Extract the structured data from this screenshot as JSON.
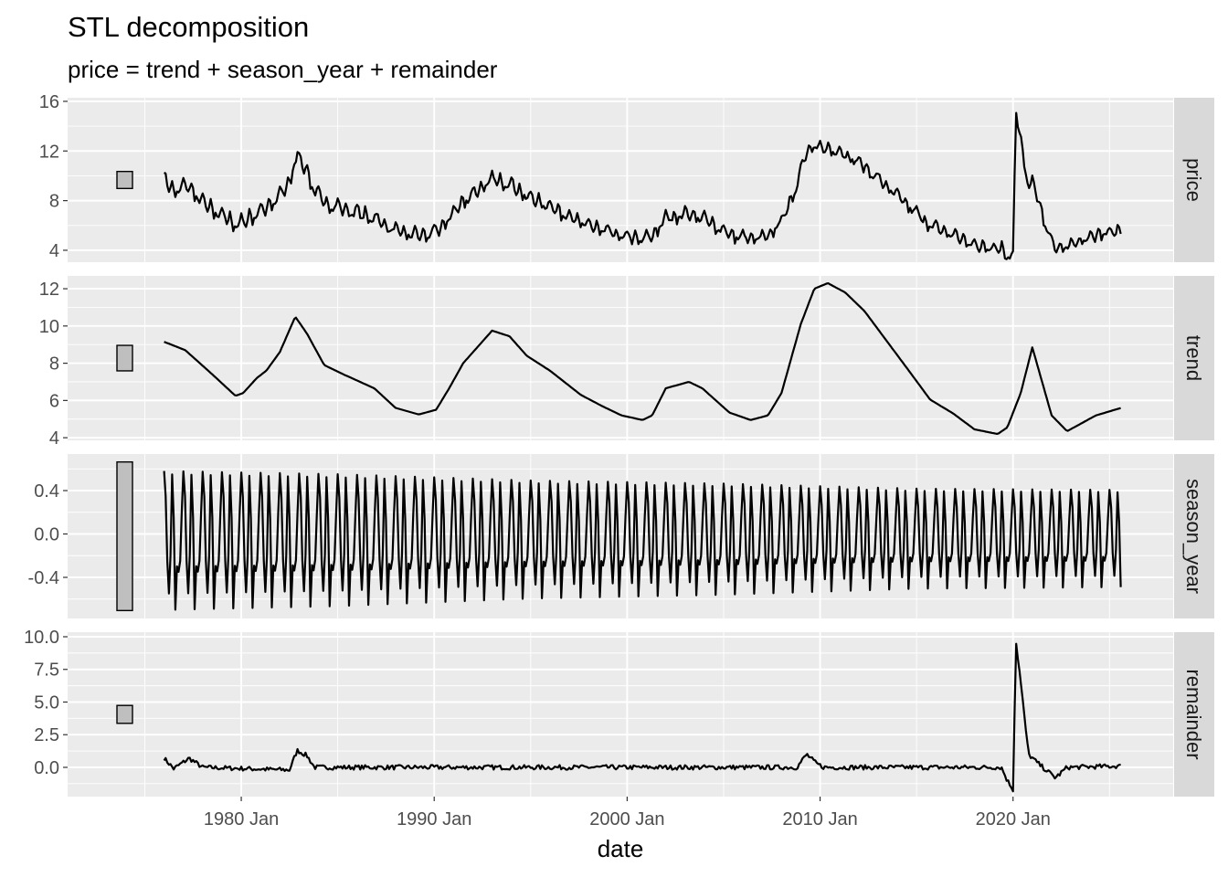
{
  "chart_data": {
    "type": "line",
    "title": "STL decomposition",
    "subtitle": "price = trend + season_year + remainder",
    "xlabel": "date",
    "x_ticks": [
      "1980 Jan",
      "1990 Jan",
      "2000 Jan",
      "2010 Jan",
      "2020 Jan"
    ],
    "x_tick_years": [
      1980,
      1990,
      2000,
      2010,
      2020
    ],
    "x_range": [
      1971.0,
      2028.3
    ],
    "data_start": 1976.0,
    "data_end": 2025.6,
    "grid": true,
    "colors": {
      "panel_bg": "#ebebeb",
      "strip_bg": "#d9d9d9",
      "line": "#000000",
      "scale_bar": "#bfbfbf"
    },
    "panels": [
      {
        "name": "price",
        "ylim": [
          3.04,
          16.29
        ],
        "y_ticks": [
          4,
          8,
          12,
          16
        ],
        "y_tick_labels": [
          "4",
          "8",
          "12",
          "16"
        ]
      },
      {
        "name": "trend",
        "ylim": [
          3.86,
          12.69
        ],
        "y_ticks": [
          4,
          6,
          8,
          10,
          12
        ],
        "y_tick_labels": [
          "4",
          "6",
          "8",
          "10",
          "12"
        ]
      },
      {
        "name": "season_year",
        "ylim": [
          -0.779,
          0.737
        ],
        "y_ticks": [
          -0.4,
          0,
          0.4
        ],
        "y_tick_labels": [
          "-0.4",
          "0.0",
          "0.4"
        ]
      },
      {
        "name": "remainder",
        "ylim": [
          -2.24,
          10.35
        ],
        "y_ticks": [
          0,
          2.5,
          5,
          7.5,
          10
        ],
        "y_tick_labels": [
          "0.0",
          "2.5",
          "5.0",
          "7.5",
          "10.0"
        ]
      }
    ],
    "scale_bar_range": 1.37,
    "trend": [
      [
        1976.0,
        9.15
      ],
      [
        1977.1,
        8.7
      ],
      [
        1978.5,
        7.4
      ],
      [
        1979.7,
        6.25
      ],
      [
        1980.1,
        6.4
      ],
      [
        1980.8,
        7.2
      ],
      [
        1981.3,
        7.6
      ],
      [
        1982.0,
        8.6
      ],
      [
        1982.8,
        10.5
      ],
      [
        1983.4,
        9.6
      ],
      [
        1984.3,
        7.9
      ],
      [
        1985.3,
        7.4
      ],
      [
        1986.9,
        6.65
      ],
      [
        1988.0,
        5.6
      ],
      [
        1989.2,
        5.25
      ],
      [
        1990.1,
        5.5
      ],
      [
        1990.8,
        6.7
      ],
      [
        1991.5,
        8.0
      ],
      [
        1993.0,
        9.75
      ],
      [
        1993.9,
        9.45
      ],
      [
        1994.8,
        8.4
      ],
      [
        1996.0,
        7.6
      ],
      [
        1997.6,
        6.3
      ],
      [
        1998.7,
        5.7
      ],
      [
        1999.7,
        5.2
      ],
      [
        2000.8,
        4.95
      ],
      [
        2001.3,
        5.2
      ],
      [
        2002.0,
        6.65
      ],
      [
        2003.2,
        7.0
      ],
      [
        2003.9,
        6.65
      ],
      [
        2005.3,
        5.35
      ],
      [
        2006.4,
        4.95
      ],
      [
        2007.3,
        5.2
      ],
      [
        2008.0,
        6.4
      ],
      [
        2009.0,
        10.1
      ],
      [
        2009.7,
        12.0
      ],
      [
        2010.4,
        12.3
      ],
      [
        2011.3,
        11.8
      ],
      [
        2012.3,
        10.8
      ],
      [
        2014.6,
        7.6
      ],
      [
        2015.7,
        6.05
      ],
      [
        2016.9,
        5.3
      ],
      [
        2018.0,
        4.45
      ],
      [
        2019.2,
        4.2
      ],
      [
        2019.7,
        4.55
      ],
      [
        2020.4,
        6.4
      ],
      [
        2021.0,
        8.85
      ],
      [
        2022.0,
        5.2
      ],
      [
        2022.8,
        4.35
      ],
      [
        2024.3,
        5.2
      ],
      [
        2025.6,
        5.6
      ]
    ],
    "season_monthly_pattern": [
      0.58,
      0.35,
      -0.25,
      -0.55,
      -0.2,
      0.55,
      0.15,
      -0.7,
      -0.3,
      -0.35,
      -0.25,
      0.2
    ],
    "season_amplitude": [
      [
        1976,
        1.0
      ],
      [
        1985,
        0.95
      ],
      [
        1995,
        0.85
      ],
      [
        2005,
        0.8
      ],
      [
        2015,
        0.72
      ],
      [
        2025.6,
        0.7
      ]
    ],
    "remainder": [
      [
        1976.0,
        0.7
      ],
      [
        1976.5,
        -0.1
      ],
      [
        1977.3,
        0.7
      ],
      [
        1978,
        0.0
      ],
      [
        1982.5,
        -0.2
      ],
      [
        1982.9,
        1.3
      ],
      [
        1983.4,
        0.9
      ],
      [
        1983.8,
        0.0
      ],
      [
        2008.8,
        0.0
      ],
      [
        2009.3,
        1.0
      ],
      [
        2009.8,
        0.3
      ],
      [
        2010.2,
        0.0
      ],
      [
        2019.4,
        0.0
      ],
      [
        2019.7,
        -1.0
      ],
      [
        2020.0,
        -1.7
      ],
      [
        2020.15,
        9.7
      ],
      [
        2020.4,
        6.5
      ],
      [
        2020.8,
        1.0
      ],
      [
        2021.3,
        0.3
      ],
      [
        2022.2,
        -0.8
      ],
      [
        2022.8,
        0.0
      ],
      [
        2025.6,
        0.1
      ]
    ]
  }
}
